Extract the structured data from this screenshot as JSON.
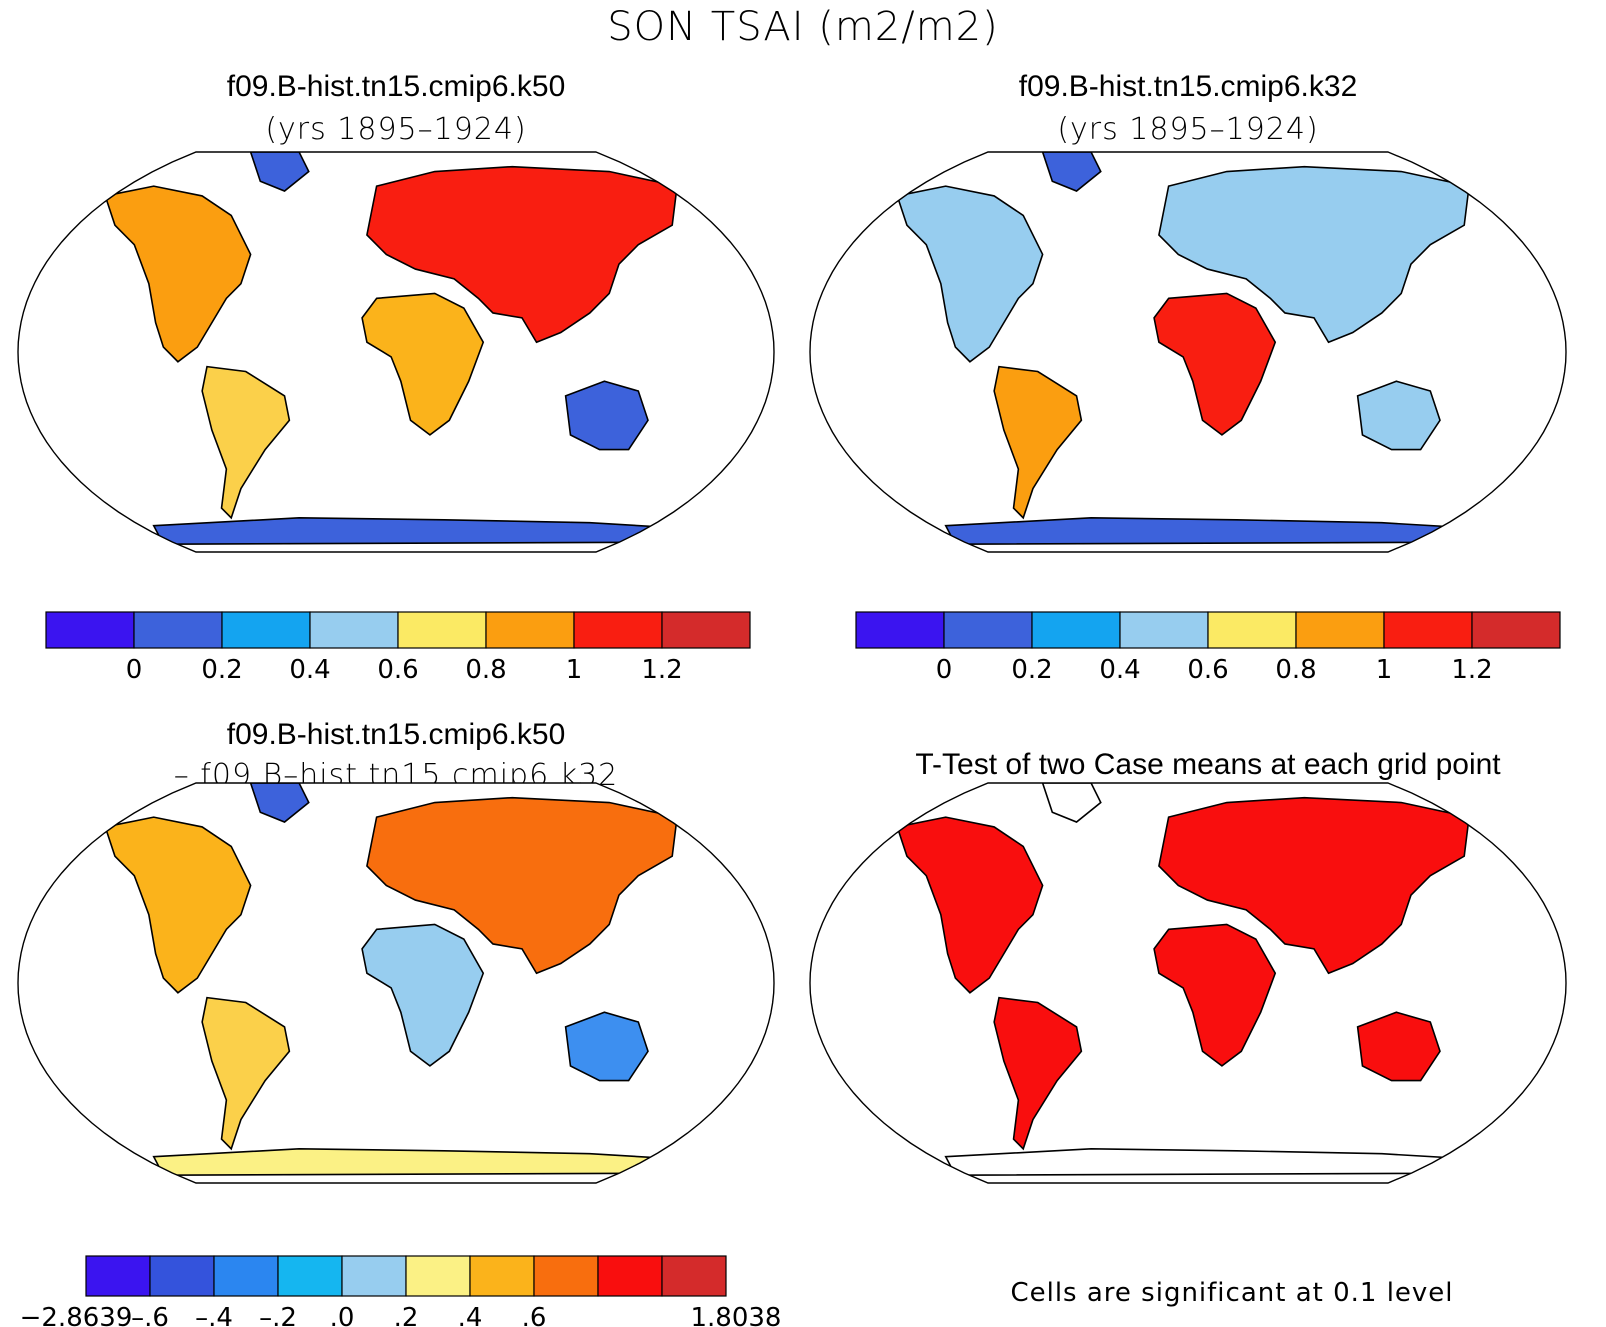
{
  "title": "SON TSAI (m2/m2)",
  "panels": [
    {
      "id": "k50",
      "title": "f09.B-hist.tn15.cmip6.k50",
      "subtitle": "(yrs 1895–1924)"
    },
    {
      "id": "k32",
      "title": "f09.B-hist.tn15.cmip6.k32",
      "subtitle": "(yrs 1895–1924)"
    },
    {
      "id": "diff",
      "title": "f09.B-hist.tn15.cmip6.k50",
      "subtitle": "– f09.B–hist.tn15.cmip6.k32"
    },
    {
      "id": "ttest",
      "title": "T-Test of two Case means at each grid point",
      "subtitle": ""
    }
  ],
  "colorbar_main": {
    "colors": [
      "#3b14f0",
      "#3d62db",
      "#14a4f0",
      "#97cdef",
      "#fbea64",
      "#fb9e10",
      "#f91e11",
      "#d42b2b"
    ],
    "labels": [
      "0",
      "0.2",
      "0.4",
      "0.6",
      "0.8",
      "1",
      "1.2"
    ]
  },
  "colorbar_diff": {
    "colors": [
      "#3b14f0",
      "#3453dc",
      "#2b86f0",
      "#15b6f0",
      "#97cdef",
      "#fbf185",
      "#fbb31b",
      "#f86e0e",
      "#f90e0e",
      "#d42b2b"
    ],
    "labels": [
      "−2.8639",
      "–.6",
      "–.4",
      "–.2",
      ".0",
      ".2",
      ".4",
      ".6",
      "",
      "1.8038"
    ]
  },
  "ttest_color": "#f90e0e",
  "footnote": "Cells are significant at 0.1 level"
}
